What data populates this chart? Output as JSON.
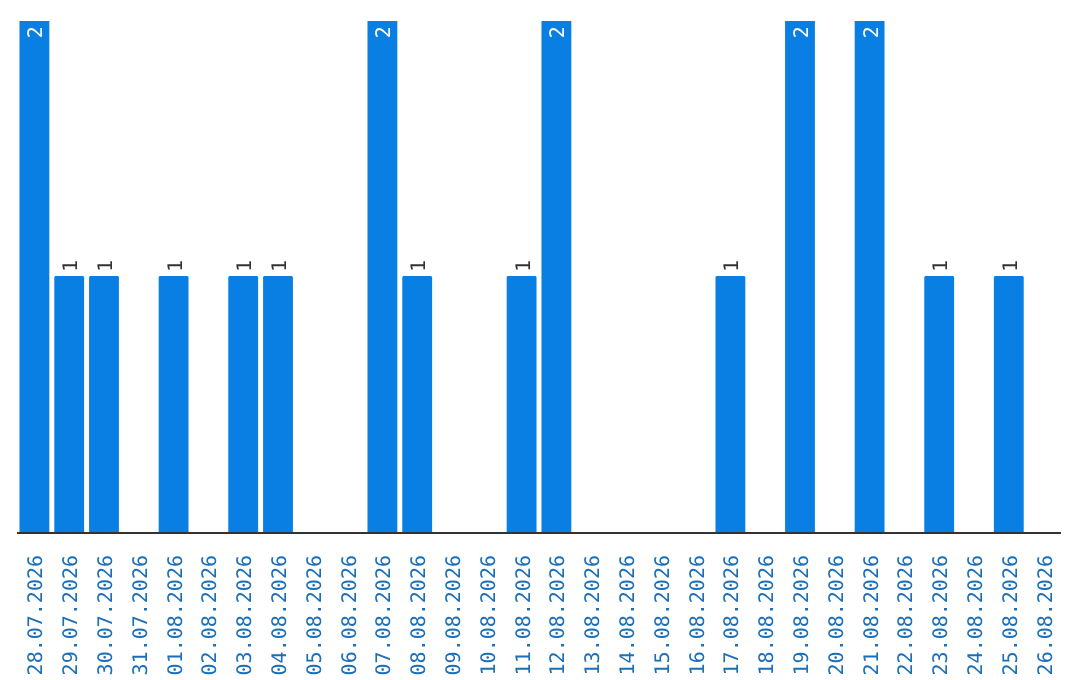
{
  "chart_data": {
    "type": "bar",
    "color": "#0a7fe3",
    "categories": [
      "28.07.2026",
      "29.07.2026",
      "30.07.2026",
      "31.07.2026",
      "01.08.2026",
      "02.08.2026",
      "03.08.2026",
      "04.08.2026",
      "05.08.2026",
      "06.08.2026",
      "07.08.2026",
      "08.08.2026",
      "09.08.2026",
      "10.08.2026",
      "11.08.2026",
      "12.08.2026",
      "13.08.2026",
      "14.08.2026",
      "15.08.2026",
      "16.08.2026",
      "17.08.2026",
      "18.08.2026",
      "19.08.2026",
      "20.08.2026",
      "21.08.2026",
      "22.08.2026",
      "23.08.2026",
      "24.08.2026",
      "25.08.2026",
      "26.08.2026"
    ],
    "values": [
      2,
      1,
      1,
      0,
      1,
      0,
      1,
      1,
      0,
      0,
      2,
      1,
      0,
      0,
      1,
      2,
      0,
      0,
      0,
      0,
      1,
      0,
      2,
      0,
      2,
      0,
      1,
      0,
      1,
      0
    ],
    "value_labels": [
      "2",
      "1",
      "1",
      null,
      "1",
      null,
      "1",
      "1",
      null,
      null,
      "2",
      "1",
      null,
      null,
      "1",
      "2",
      null,
      null,
      null,
      null,
      "1",
      null,
      "2",
      null,
      "2",
      null,
      "1",
      null,
      "1",
      null
    ],
    "ylim": [
      0,
      2
    ],
    "tick_labels": "x",
    "grid": false
  }
}
